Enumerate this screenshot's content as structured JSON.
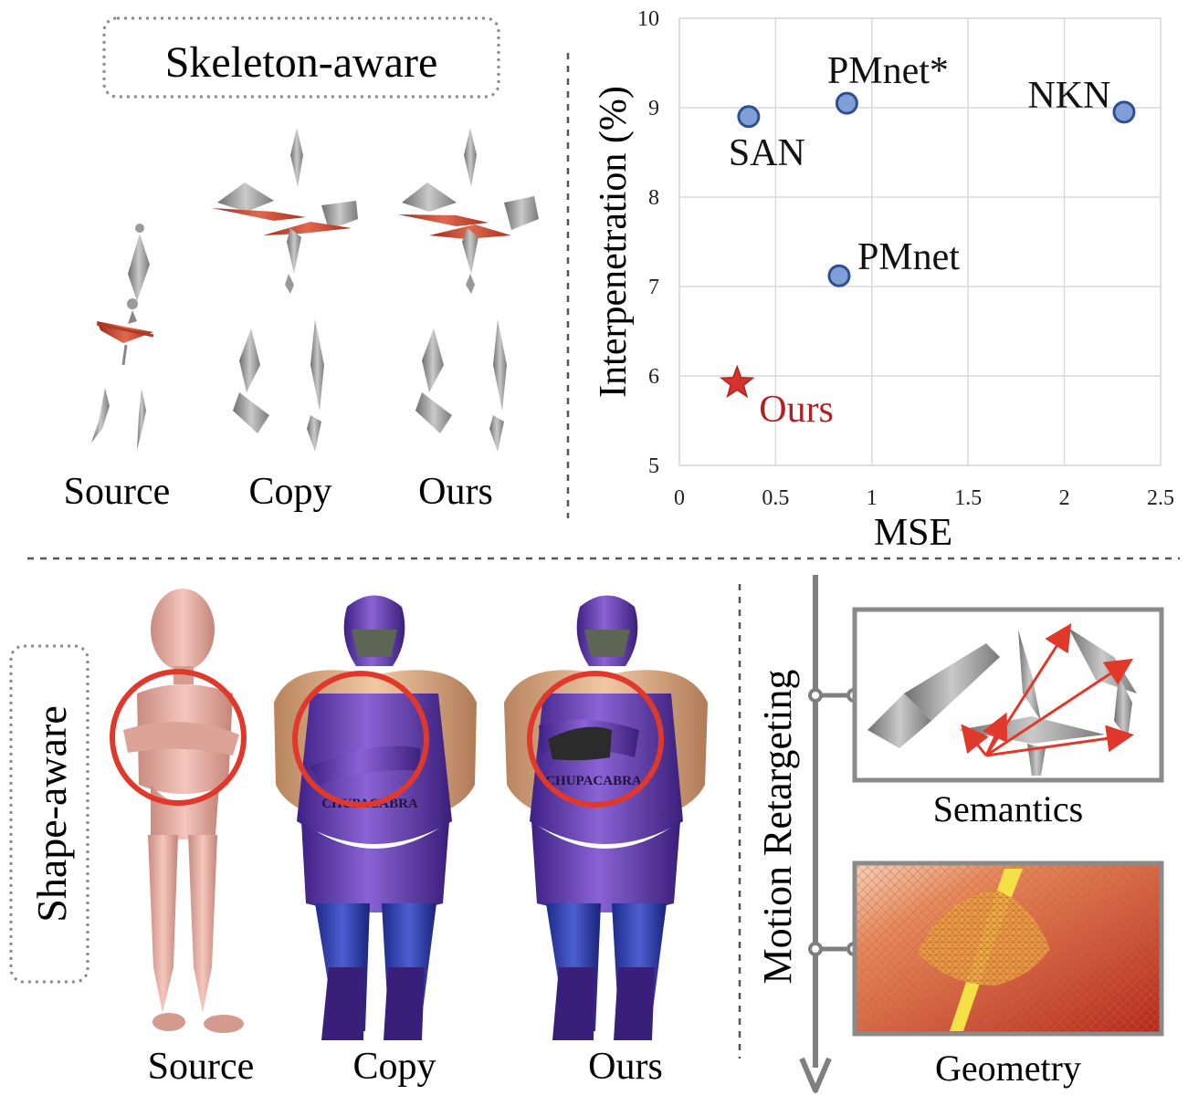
{
  "skeleton_section": {
    "title": "Skeleton-aware",
    "columns": [
      "Source",
      "Copy",
      "Ours"
    ]
  },
  "shape_section": {
    "title": "Shape-aware",
    "columns": [
      "Source",
      "Copy",
      "Ours"
    ],
    "shirt_text": "CHUPACABRA"
  },
  "retargeting": {
    "axis_label": "Motion Retargeting",
    "items": [
      "Semantics",
      "Geometry"
    ]
  },
  "colors": {
    "point_fill": "#7f9fd6",
    "point_stroke": "#2f4f93",
    "ours_color": "#b22222",
    "grid": "#d9d9d9",
    "arrow_red": "#e0382b",
    "costume_purple": "#6d3fb3",
    "mannequin_pink": "#e7aea3"
  },
  "chart_data": {
    "type": "scatter",
    "xlabel": "MSE",
    "ylabel": "Interpenetration (%)",
    "xlim": [
      0,
      2.5
    ],
    "ylim": [
      5,
      10
    ],
    "xticks": [
      "0",
      "0.5",
      "1",
      "1.5",
      "2",
      "2.5"
    ],
    "yticks": [
      "5",
      "6",
      "7",
      "8",
      "9",
      "10"
    ],
    "grid": true,
    "points": [
      {
        "name": "SAN",
        "x": 0.36,
        "y": 8.9,
        "marker": "circle"
      },
      {
        "name": "PMnet*",
        "x": 0.87,
        "y": 9.05,
        "marker": "circle"
      },
      {
        "name": "NKN",
        "x": 2.31,
        "y": 8.95,
        "marker": "circle"
      },
      {
        "name": "PMnet",
        "x": 0.83,
        "y": 7.12,
        "marker": "circle"
      },
      {
        "name": "Ours",
        "x": 0.3,
        "y": 5.92,
        "marker": "star"
      }
    ]
  }
}
